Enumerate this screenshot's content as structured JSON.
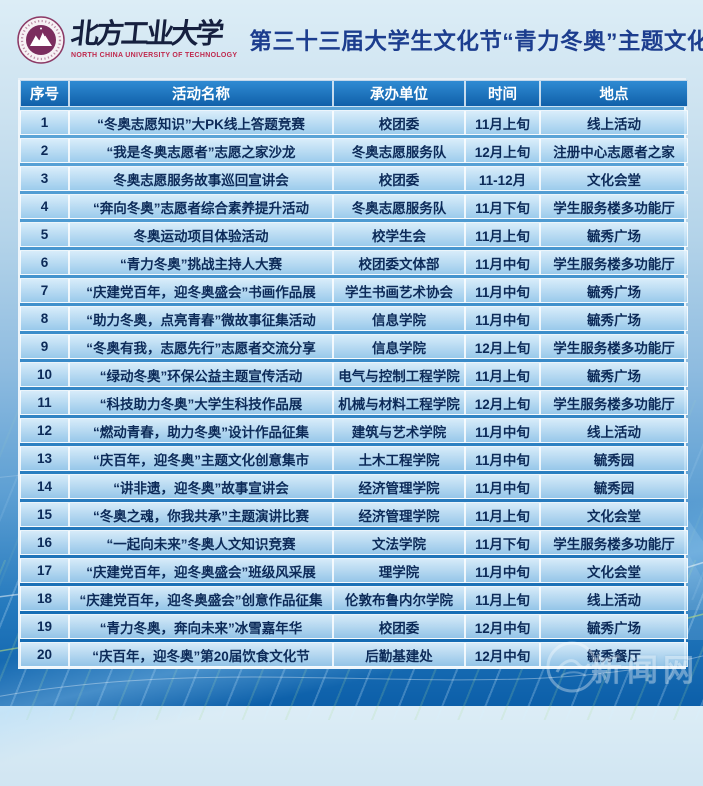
{
  "header": {
    "university_cn": "北方工业大学",
    "university_en": "NORTH CHINA UNIVERSITY OF TECHNOLOGY",
    "title": "第三十三届大学生文化节“青力冬奥”主题文化活动"
  },
  "table": {
    "columns": [
      "序号",
      "活动名称",
      "承办单位",
      "时间",
      "地点"
    ],
    "rows": [
      [
        "1",
        "“冬奥志愿知识”大PK线上答题竞赛",
        "校团委",
        "11月上旬",
        "线上活动"
      ],
      [
        "2",
        "“我是冬奥志愿者”志愿之家沙龙",
        "冬奥志愿服务队",
        "12月上旬",
        "注册中心志愿者之家"
      ],
      [
        "3",
        "冬奥志愿服务故事巡回宣讲会",
        "校团委",
        "11-12月",
        "文化会堂"
      ],
      [
        "4",
        "“奔向冬奥”志愿者综合素养提升活动",
        "冬奥志愿服务队",
        "11月下旬",
        "学生服务楼多功能厅"
      ],
      [
        "5",
        "冬奥运动项目体验活动",
        "校学生会",
        "11月上旬",
        "毓秀广场"
      ],
      [
        "6",
        "“青力冬奥”挑战主持人大赛",
        "校团委文体部",
        "11月中旬",
        "学生服务楼多功能厅"
      ],
      [
        "7",
        "“庆建党百年，迎冬奥盛会”书画作品展",
        "学生书画艺术协会",
        "11月中旬",
        "毓秀广场"
      ],
      [
        "8",
        "“助力冬奥，点亮青春”微故事征集活动",
        "信息学院",
        "11月中旬",
        "毓秀广场"
      ],
      [
        "9",
        "“冬奥有我，志愿先行”志愿者交流分享",
        "信息学院",
        "12月上旬",
        "学生服务楼多功能厅"
      ],
      [
        "10",
        "“绿动冬奥”环保公益主题宣传活动",
        "电气与控制工程学院",
        "11月上旬",
        "毓秀广场"
      ],
      [
        "11",
        "“科技助力冬奥”大学生科技作品展",
        "机械与材料工程学院",
        "12月上旬",
        "学生服务楼多功能厅"
      ],
      [
        "12",
        "“燃动青春，助力冬奥”设计作品征集",
        "建筑与艺术学院",
        "11月中旬",
        "线上活动"
      ],
      [
        "13",
        "“庆百年，迎冬奥”主题文化创意集市",
        "土木工程学院",
        "11月中旬",
        "毓秀园"
      ],
      [
        "14",
        "“讲非遗，迎冬奥”故事宣讲会",
        "经济管理学院",
        "11月中旬",
        "毓秀园"
      ],
      [
        "15",
        "“冬奥之魂，你我共承”主题演讲比赛",
        "经济管理学院",
        "11月上旬",
        "文化会堂"
      ],
      [
        "16",
        "“一起向未来”冬奥人文知识竞赛",
        "文法学院",
        "11月下旬",
        "学生服务楼多功能厅"
      ],
      [
        "17",
        "“庆建党百年，迎冬奥盛会”班级风采展",
        "理学院",
        "11月中旬",
        "文化会堂"
      ],
      [
        "18",
        "“庆建党百年，迎冬奥盛会”创意作品征集",
        "伦敦布鲁内尔学院",
        "11月上旬",
        "线上活动"
      ],
      [
        "19",
        "“青力冬奥，奔向未来”冰雪嘉年华",
        "校团委",
        "12月中旬",
        "毓秀广场"
      ],
      [
        "20",
        "“庆百年，迎冬奥”第20届饮食文化节",
        "后勤基建处",
        "12月中旬",
        "毓秀餐厅"
      ]
    ]
  },
  "watermark": {
    "text": "新闻网"
  },
  "colors": {
    "title_navy": "#1c3d8e",
    "table_header_blue": "#1e74c0",
    "cell_light_blue": "#bcdcf2",
    "cell_text_navy": "#0c2a58",
    "seal_maroon": "#7b2d5e",
    "university_en_red": "#bf2a4e",
    "background_bottom_blue": "#0c5fa9"
  }
}
